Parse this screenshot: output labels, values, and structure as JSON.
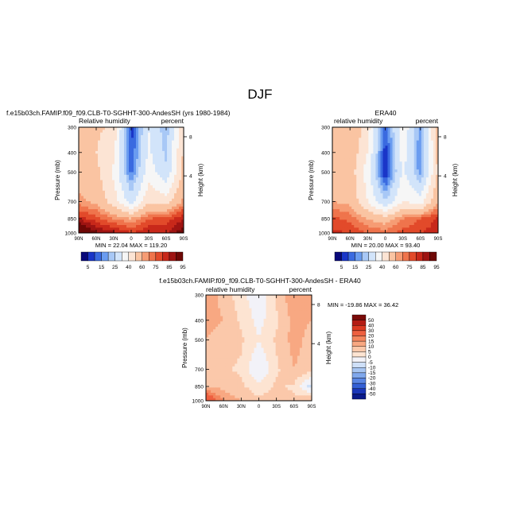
{
  "main_title": "DJF",
  "panels": [
    {
      "title": "f.e15b03ch.FAMIP.f09_f09.CLB-T0-SGHHT-300-AndesSH (yrs 1980-1984)",
      "left_label": "Relative humidity",
      "right_label": "percent",
      "stats": "MIN =  22.04   MAX = 119.20"
    },
    {
      "title": "ERA40",
      "left_label": "relative humidity",
      "right_label": "percent",
      "stats": "MIN =  20.00   MAX =  93.40"
    },
    {
      "title": "f.e15b03ch.FAMIP.f09_f09.CLB-T0-SGHHT-300-AndesSH - ERA40",
      "left_label": "relative humidity",
      "right_label": "percent",
      "stats": "MIN = -19.86   MAX =  36.42"
    }
  ],
  "axes": {
    "ylabel": "Pressure (mb)",
    "y2label": "Height (km)",
    "pressure_ticks": [
      "300",
      "400",
      "500",
      "700",
      "850",
      "1000"
    ],
    "height_ticks": [
      "8",
      "4"
    ],
    "lat_ticks": [
      "90N",
      "60N",
      "30N",
      "0",
      "30S",
      "60S",
      "90S"
    ]
  },
  "colorbars": {
    "abs_labels": [
      "5",
      "15",
      "25",
      "40",
      "60",
      "75",
      "85",
      "95"
    ],
    "abs_colors": [
      "#08087a",
      "#1a36c8",
      "#3a6ae0",
      "#6a9cf0",
      "#a8c8f6",
      "#d2e4fa",
      "#f6f6f6",
      "#fce4d4",
      "#fac4a2",
      "#f69c74",
      "#ef744c",
      "#e24a2a",
      "#c8281a",
      "#9e1412",
      "#6e0806"
    ],
    "diff_labels": [
      "50",
      "40",
      "30",
      "20",
      "15",
      "10",
      "5",
      "0",
      "-5",
      "-10",
      "-15",
      "-20",
      "-30",
      "-40",
      "-50"
    ],
    "diff_colors": [
      "#7a0a08",
      "#b41c14",
      "#dc3a22",
      "#ee6040",
      "#f4865e",
      "#f8a882",
      "#fbc8aa",
      "#fde4d2",
      "#f2f2f8",
      "#cfe0f8",
      "#a8c6f2",
      "#80a8ec",
      "#5a86e4",
      "#3460d6",
      "#1a36b8",
      "#0a1a8a"
    ]
  },
  "chart_data": [
    {
      "type": "heatmap",
      "title": "f.e15b03ch.FAMIP.f09_f09.CLB-T0-SGHHT-300-AndesSH (yrs 1980-1984)",
      "variable": "Relative humidity",
      "units": "percent",
      "xlabel": "",
      "ylabel": "Pressure (mb)",
      "x": [
        "90N",
        "60N",
        "30N",
        "0",
        "30S",
        "60S",
        "90S"
      ],
      "y": [
        300,
        400,
        500,
        700,
        850,
        1000
      ],
      "values": [
        [
          60,
          62,
          58,
          12,
          40,
          25,
          60
        ],
        [
          62,
          60,
          52,
          15,
          42,
          28,
          62
        ],
        [
          66,
          63,
          48,
          18,
          45,
          32,
          64
        ],
        [
          72,
          68,
          55,
          35,
          58,
          55,
          72
        ],
        [
          88,
          82,
          75,
          70,
          80,
          82,
          90
        ],
        [
          110,
          95,
          92,
          85,
          90,
          88,
          100
        ]
      ],
      "min": 22.04,
      "max": 119.2
    },
    {
      "type": "heatmap",
      "title": "ERA40",
      "variable": "relative humidity",
      "units": "percent",
      "xlabel": "",
      "ylabel": "Pressure (mb)",
      "x": [
        "90N",
        "60N",
        "30N",
        "0",
        "30S",
        "60S",
        "90S"
      ],
      "y": [
        300,
        400,
        500,
        700,
        850,
        1000
      ],
      "values": [
        [
          68,
          70,
          55,
          15,
          48,
          22,
          66
        ],
        [
          66,
          68,
          50,
          12,
          45,
          20,
          64
        ],
        [
          64,
          66,
          45,
          10,
          42,
          22,
          62
        ],
        [
          70,
          68,
          50,
          30,
          50,
          45,
          70
        ],
        [
          82,
          78,
          70,
          65,
          75,
          80,
          86
        ],
        [
          86,
          85,
          80,
          78,
          82,
          85,
          88
        ]
      ],
      "min": 20.0,
      "max": 93.4
    },
    {
      "type": "heatmap",
      "title": "f.e15b03ch.FAMIP.f09_f09.CLB-T0-SGHHT-300-AndesSH - ERA40",
      "variable": "relative humidity",
      "units": "percent",
      "xlabel": "",
      "ylabel": "Pressure (mb)",
      "x": [
        "90N",
        "60N",
        "30N",
        "0",
        "30S",
        "60S",
        "90S"
      ],
      "y": [
        300,
        400,
        500,
        700,
        850,
        1000
      ],
      "values": [
        [
          14,
          8,
          2,
          -4,
          6,
          14,
          12
        ],
        [
          12,
          10,
          4,
          -2,
          4,
          12,
          10
        ],
        [
          10,
          8,
          6,
          0,
          6,
          12,
          8
        ],
        [
          8,
          6,
          4,
          -6,
          4,
          10,
          6
        ],
        [
          10,
          8,
          6,
          2,
          6,
          4,
          -8
        ],
        [
          30,
          14,
          10,
          6,
          8,
          6,
          10
        ]
      ],
      "min": -19.86,
      "max": 36.42
    }
  ]
}
